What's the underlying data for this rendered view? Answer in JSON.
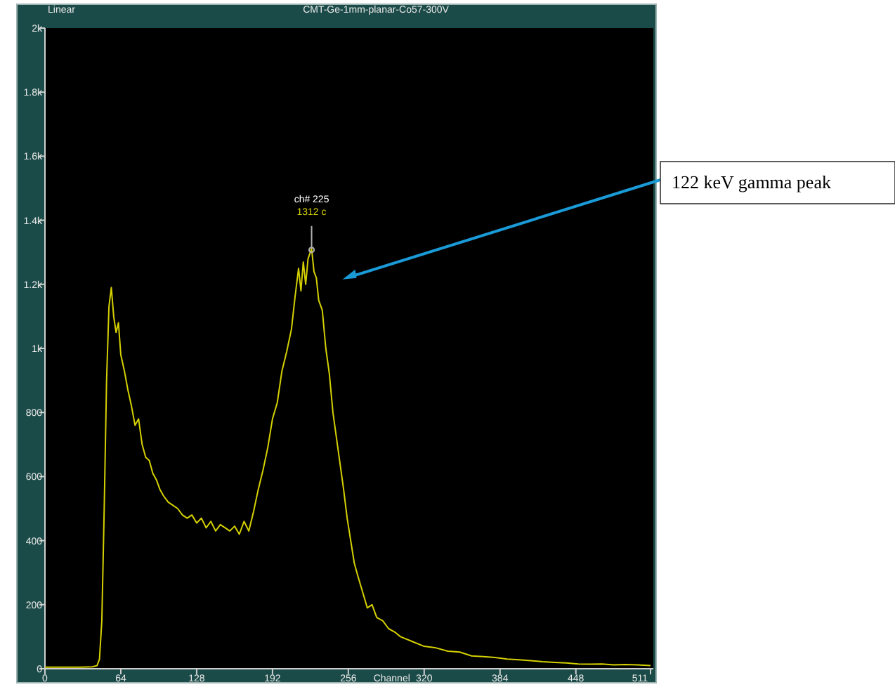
{
  "chart_data": {
    "type": "line",
    "title": "CMT-Ge-1mm-planar-Co57-300V",
    "subtitle": "Linear",
    "xlabel": "Channel",
    "x": [
      0,
      10,
      20,
      30,
      40,
      44,
      46,
      48,
      50,
      52,
      54,
      56,
      58,
      60,
      62,
      64,
      67,
      70,
      73,
      76,
      79,
      82,
      85,
      88,
      91,
      94,
      97,
      100,
      104,
      108,
      112,
      116,
      120,
      124,
      128,
      132,
      136,
      140,
      144,
      148,
      152,
      156,
      160,
      164,
      168,
      172,
      176,
      180,
      184,
      188,
      192,
      196,
      200,
      204,
      208,
      211,
      214,
      216,
      218,
      220,
      222,
      225,
      227,
      229,
      231,
      234,
      237,
      240,
      243,
      246,
      249,
      252,
      255,
      258,
      261,
      264,
      268,
      272,
      276,
      280,
      285,
      290,
      295,
      300,
      310,
      320,
      330,
      340,
      350,
      360,
      370,
      380,
      390,
      400,
      410,
      420,
      430,
      440,
      450,
      460,
      470,
      480,
      490,
      500,
      511
    ],
    "series": [
      {
        "color": "#d4d000",
        "values": [
          5,
          5,
          5,
          5,
          6,
          10,
          30,
          150,
          500,
          900,
          1130,
          1190,
          1100,
          1050,
          1080,
          980,
          930,
          870,
          820,
          760,
          780,
          700,
          660,
          650,
          610,
          590,
          560,
          540,
          520,
          510,
          500,
          480,
          470,
          480,
          455,
          470,
          440,
          460,
          430,
          450,
          440,
          430,
          445,
          420,
          460,
          430,
          490,
          560,
          620,
          690,
          780,
          830,
          930,
          990,
          1060,
          1160,
          1250,
          1180,
          1270,
          1200,
          1280,
          1312,
          1240,
          1220,
          1150,
          1120,
          1000,
          920,
          800,
          720,
          640,
          560,
          470,
          400,
          330,
          290,
          240,
          190,
          200,
          160,
          150,
          125,
          115,
          100,
          85,
          70,
          65,
          55,
          52,
          40,
          38,
          35,
          30,
          28,
          25,
          22,
          20,
          18,
          15,
          14,
          15,
          12,
          13,
          12,
          10
        ]
      }
    ],
    "xlim": [
      0,
      511
    ],
    "xticks": [
      0,
      64,
      128,
      192,
      256,
      320,
      384,
      448,
      511
    ],
    "ylim": [
      0,
      2000
    ],
    "yticks": [
      0,
      200,
      400,
      600,
      800,
      {
        "value": 1000,
        "label": "1k"
      },
      {
        "value": 1200,
        "label": "1.2k"
      },
      {
        "value": 1400,
        "label": "1.4k"
      },
      {
        "value": 1600,
        "label": "1.6k"
      },
      {
        "value": 1800,
        "label": "1.8k"
      },
      {
        "value": 2000,
        "label": "2k"
      }
    ],
    "grid": false,
    "annotations": [
      "ch# 225",
      "1312 c",
      "122 keV gamma peak"
    ]
  }
}
